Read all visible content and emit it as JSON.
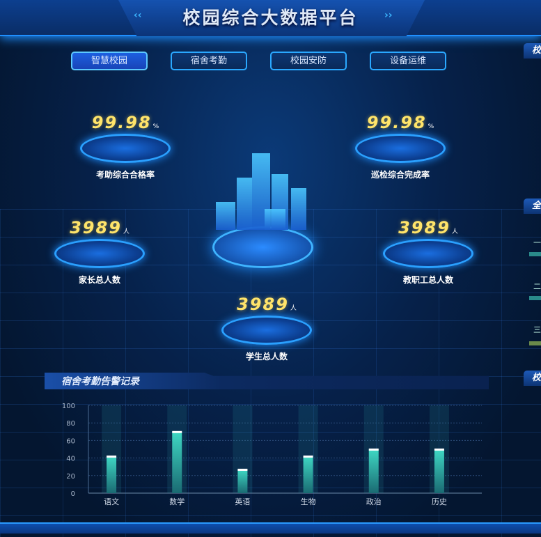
{
  "header": {
    "title": "校园综合大数据平台",
    "deco_left": "‹‹",
    "deco_right": "››"
  },
  "tabs": [
    {
      "label": "智慧校园",
      "active": true
    },
    {
      "label": "宿舍考勤",
      "active": false
    },
    {
      "label": "校园安防",
      "active": false
    },
    {
      "label": "设备运维",
      "active": false
    }
  ],
  "stats": [
    {
      "value": "99.98",
      "unit": "%",
      "label": "考助综合合格率"
    },
    {
      "value": "99.98",
      "unit": "%",
      "label": "巡检综合完成率"
    },
    {
      "value": "3989",
      "unit": "人",
      "label": "家长总人数"
    },
    {
      "value": "3989",
      "unit": "人",
      "label": "教职工总人数"
    },
    {
      "value": "3989",
      "unit": "人",
      "label": "学生总人数"
    }
  ],
  "right_panel": {
    "headers": [
      "校",
      "全",
      "校"
    ],
    "ranks": [
      "一",
      "二",
      "三"
    ]
  },
  "colors": {
    "accent": "#2aa8ff",
    "value": "#ffe46a",
    "bar": "#2fb8a8"
  },
  "chart_data": {
    "type": "bar",
    "title": "宿舍考勤告警记录",
    "categories": [
      "语文",
      "数学",
      "英语",
      "生物",
      "政治",
      "历史"
    ],
    "values": [
      42,
      70,
      27,
      42,
      50,
      50
    ],
    "background_max": 100,
    "ylim": [
      0,
      100
    ],
    "yticks": [
      0,
      20,
      40,
      60,
      80,
      100
    ],
    "grid": true
  }
}
